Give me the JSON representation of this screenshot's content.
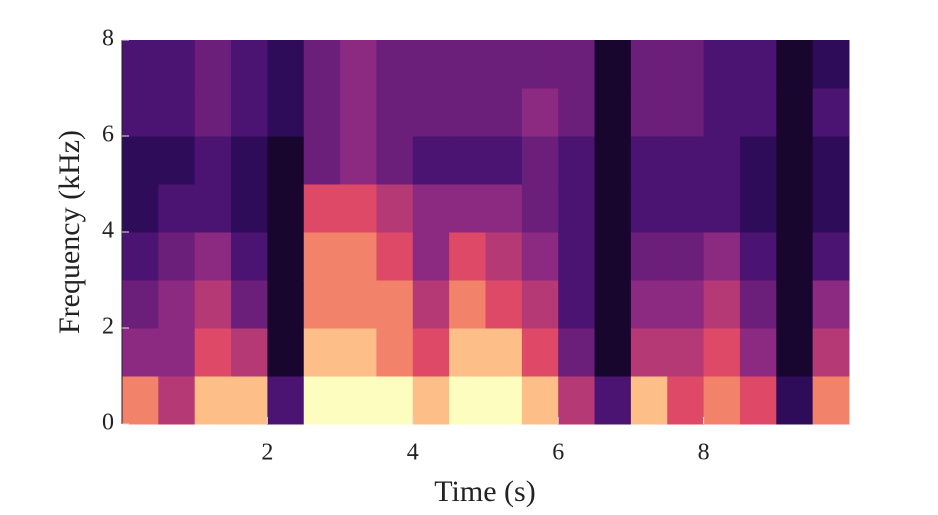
{
  "chart_data": {
    "type": "spectrogram",
    "xlabel": "Time (s)",
    "ylabel": "Frequency (kHz)",
    "xlim": [
      0,
      10
    ],
    "ylim": [
      0,
      8
    ],
    "xticks": [
      2,
      4,
      6,
      8
    ],
    "yticks": [
      0,
      2,
      4,
      6,
      8
    ],
    "time_bins": [
      0,
      0.5,
      1,
      1.5,
      2,
      2.5,
      3,
      3.5,
      4,
      4.5,
      5,
      5.5,
      6,
      6.5,
      7,
      7.5,
      8,
      8.5,
      9,
      9.5,
      10
    ],
    "freq_bins": [
      0,
      1,
      2,
      3,
      4,
      5,
      6,
      7,
      8
    ],
    "z": [
      [
        0.8,
        0.5,
        0.4,
        0.3,
        0.2,
        0.2,
        0.3,
        0.3
      ],
      [
        0.6,
        0.5,
        0.5,
        0.4,
        0.3,
        0.2,
        0.3,
        0.3
      ],
      [
        0.9,
        0.7,
        0.6,
        0.5,
        0.3,
        0.3,
        0.4,
        0.4
      ],
      [
        0.9,
        0.6,
        0.4,
        0.3,
        0.2,
        0.2,
        0.3,
        0.3
      ],
      [
        0.3,
        0.1,
        0.1,
        0.1,
        0.1,
        0.1,
        0.2,
        0.2
      ],
      [
        1,
        0.9,
        0.8,
        0.8,
        0.7,
        0.4,
        0.4,
        0.4
      ],
      [
        1,
        0.9,
        0.8,
        0.8,
        0.7,
        0.5,
        0.5,
        0.5
      ],
      [
        1,
        0.8,
        0.8,
        0.7,
        0.6,
        0.4,
        0.4,
        0.4
      ],
      [
        0.9,
        0.7,
        0.6,
        0.5,
        0.5,
        0.3,
        0.4,
        0.4
      ],
      [
        1,
        0.9,
        0.8,
        0.7,
        0.5,
        0.3,
        0.4,
        0.4
      ],
      [
        1,
        0.9,
        0.7,
        0.6,
        0.5,
        0.3,
        0.4,
        0.4
      ],
      [
        0.9,
        0.7,
        0.6,
        0.5,
        0.4,
        0.4,
        0.5,
        0.4
      ],
      [
        0.6,
        0.4,
        0.3,
        0.3,
        0.3,
        0.3,
        0.4,
        0.4
      ],
      [
        0.3,
        0.1,
        0.1,
        0.1,
        0.1,
        0.1,
        0.1,
        0.1
      ],
      [
        0.9,
        0.6,
        0.5,
        0.4,
        0.3,
        0.3,
        0.4,
        0.4
      ],
      [
        0.7,
        0.6,
        0.5,
        0.4,
        0.3,
        0.3,
        0.4,
        0.4
      ],
      [
        0.8,
        0.7,
        0.6,
        0.5,
        0.3,
        0.3,
        0.3,
        0.3
      ],
      [
        0.7,
        0.5,
        0.4,
        0.3,
        0.2,
        0.2,
        0.3,
        0.3
      ],
      [
        0.2,
        0.1,
        0.1,
        0.1,
        0.1,
        0.1,
        0.1,
        0.1
      ],
      [
        0.8,
        0.6,
        0.5,
        0.3,
        0.2,
        0.2,
        0.3,
        0.2
      ]
    ]
  }
}
